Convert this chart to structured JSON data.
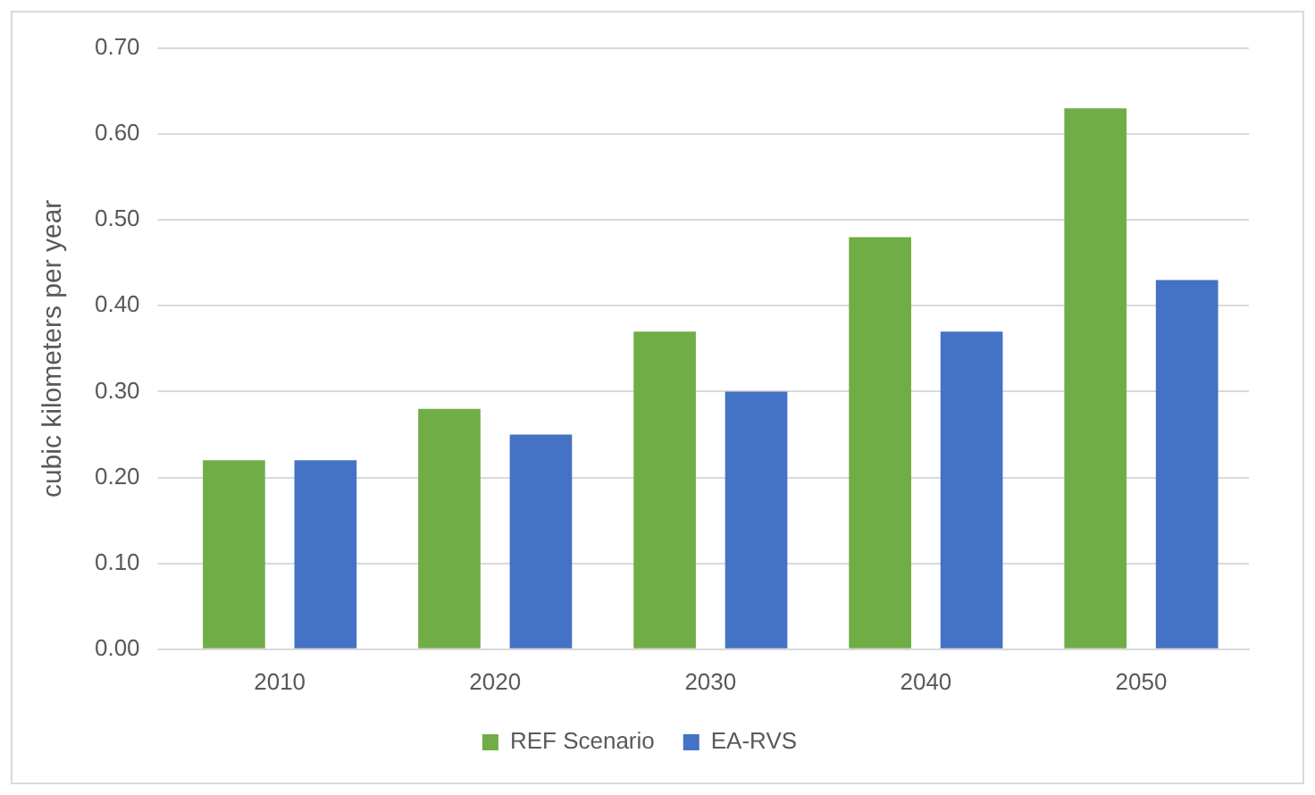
{
  "chart_data": {
    "type": "bar",
    "ylabel": "cubic kilometers per year",
    "categories": [
      "2010",
      "2020",
      "2030",
      "2040",
      "2050"
    ],
    "series": [
      {
        "name": "REF Scenario",
        "color": "#70ad47",
        "values": [
          0.22,
          0.28,
          0.37,
          0.48,
          0.63
        ]
      },
      {
        "name": "EA-RVS",
        "color": "#4472c4",
        "values": [
          0.22,
          0.25,
          0.3,
          0.37,
          0.43
        ]
      }
    ],
    "ylim": [
      0,
      0.7
    ],
    "yticks": [
      {
        "value": 0,
        "label": "0.00"
      },
      {
        "value": 0.1,
        "label": "0.10"
      },
      {
        "value": 0.2,
        "label": "0.20"
      },
      {
        "value": 0.3,
        "label": "0.30"
      },
      {
        "value": 0.4,
        "label": "0.40"
      },
      {
        "value": 0.5,
        "label": "0.50"
      },
      {
        "value": 0.6,
        "label": "0.60"
      },
      {
        "value": 0.7,
        "label": "0.70"
      }
    ],
    "grid": "y",
    "legend": "bottom"
  }
}
